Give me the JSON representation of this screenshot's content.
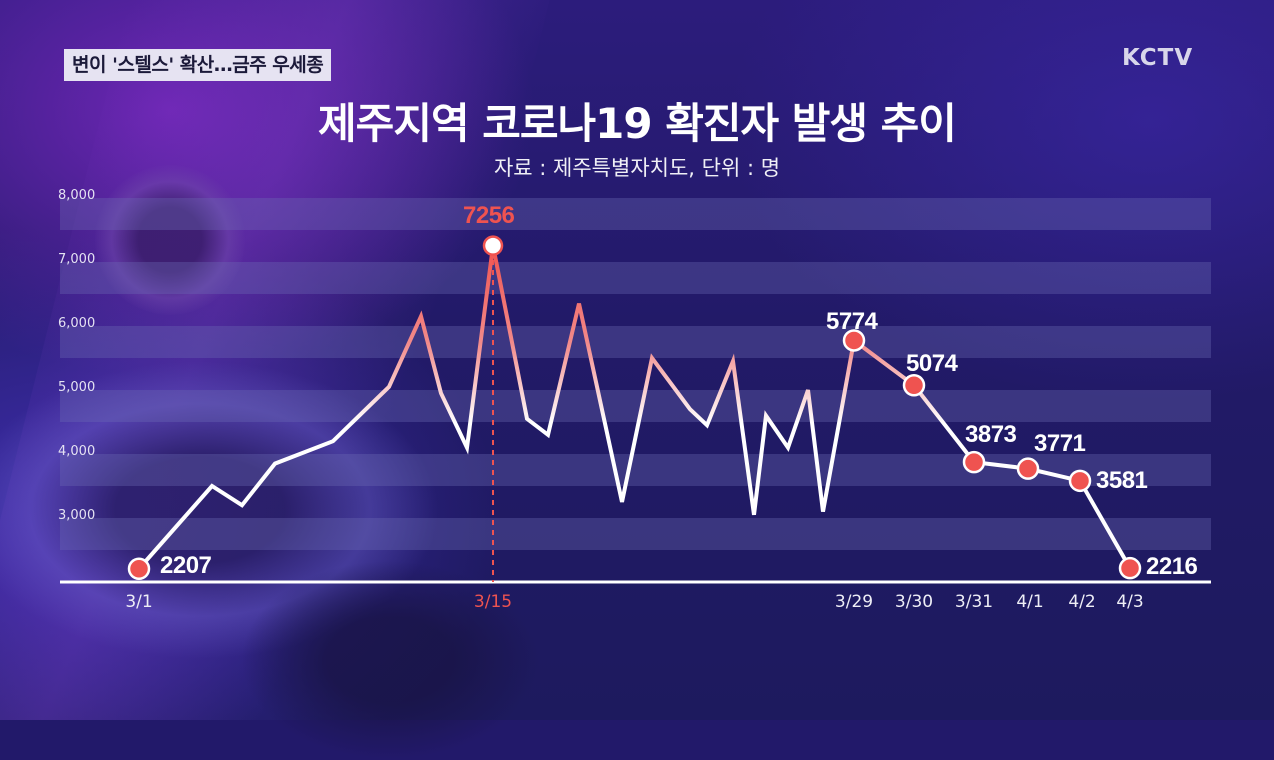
{
  "header": {
    "news_tag": "변이 '스텔스' 확산…금주 우세종",
    "channel_logo": "KCTV"
  },
  "chart_data": {
    "type": "line",
    "title": "제주지역 코로나19 확진자 발생 추이",
    "subtitle": "자료 : 제주특별자치도, 단위 : 명",
    "xlabel": "",
    "ylabel": "",
    "ylim": [
      2000,
      8000
    ],
    "y_ticks": [
      "8,000",
      "7,000",
      "6,000",
      "5,000",
      "4,000",
      "3,000"
    ],
    "x_tick_labels": [
      "3/1",
      "3/15",
      "3/29",
      "3/30",
      "3/31",
      "4/1",
      "4/2",
      "4/3"
    ],
    "grid": "alternating horizontal bands",
    "labeled_points": [
      {
        "date": "3/1",
        "value": 2207
      },
      {
        "date": "3/15",
        "value": 7256,
        "highlight": true
      },
      {
        "date": "3/29",
        "value": 5774
      },
      {
        "date": "3/30",
        "value": 5074
      },
      {
        "date": "3/31",
        "value": 3873
      },
      {
        "date": "4/1",
        "value": 3771
      },
      {
        "date": "4/2",
        "value": 3581
      },
      {
        "date": "4/3",
        "value": 2216
      }
    ],
    "line_vertices_note": "Unlabeled vertices are estimated from pixel positions (~±50) and have no date; the drawn vertices do not correspond one-to-one with calendar days.",
    "line_vertices": [
      {
        "x": 139,
        "value": 2207,
        "labeled": true
      },
      {
        "x": 212,
        "value": 3500,
        "labeled": false
      },
      {
        "x": 242,
        "value": 3200,
        "labeled": false
      },
      {
        "x": 275,
        "value": 3850,
        "labeled": false
      },
      {
        "x": 333,
        "value": 4200,
        "labeled": false
      },
      {
        "x": 389,
        "value": 5050,
        "labeled": false
      },
      {
        "x": 421,
        "value": 6150,
        "labeled": false
      },
      {
        "x": 441,
        "value": 4950,
        "labeled": false
      },
      {
        "x": 467,
        "value": 4100,
        "labeled": false
      },
      {
        "x": 493,
        "value": 7256,
        "labeled": true
      },
      {
        "x": 527,
        "value": 4550,
        "labeled": false
      },
      {
        "x": 548,
        "value": 4300,
        "labeled": false
      },
      {
        "x": 579,
        "value": 6350,
        "labeled": false
      },
      {
        "x": 622,
        "value": 3250,
        "labeled": false
      },
      {
        "x": 652,
        "value": 5500,
        "labeled": false
      },
      {
        "x": 690,
        "value": 4700,
        "labeled": false
      },
      {
        "x": 707,
        "value": 4450,
        "labeled": false
      },
      {
        "x": 733,
        "value": 5450,
        "labeled": false
      },
      {
        "x": 754,
        "value": 3050,
        "labeled": false
      },
      {
        "x": 766,
        "value": 4600,
        "labeled": false
      },
      {
        "x": 788,
        "value": 4100,
        "labeled": false
      },
      {
        "x": 808,
        "value": 5000,
        "labeled": false
      },
      {
        "x": 823,
        "value": 3100,
        "labeled": false
      },
      {
        "x": 854,
        "value": 5774,
        "labeled": true
      },
      {
        "x": 914,
        "value": 5074,
        "labeled": true
      },
      {
        "x": 974,
        "value": 3873,
        "labeled": true
      },
      {
        "x": 1028,
        "value": 3771,
        "labeled": true
      },
      {
        "x": 1080,
        "value": 3581,
        "labeled": true
      },
      {
        "x": 1130,
        "value": 2216,
        "labeled": true
      }
    ],
    "colors": {
      "line": "#ffffff",
      "highlight": "#ef5350",
      "marker": "#ef5350",
      "band": "rgba(110,110,180,0.35)"
    }
  },
  "labels": {
    "y": [
      "8,000",
      "7,000",
      "6,000",
      "5,000",
      "4,000",
      "3,000"
    ],
    "x": {
      "d0301": "3/1",
      "d0315": "3/15",
      "d0329": "3/29",
      "d0330": "3/30",
      "d0331": "3/31",
      "d0401": "4/1",
      "d0402": "4/2",
      "d0403": "4/3"
    },
    "values": {
      "v0301": "2207",
      "v0315": "7256",
      "v0329": "5774",
      "v0330": "5074",
      "v0331": "3873",
      "v0401": "3771",
      "v0402": "3581",
      "v0403": "2216"
    }
  }
}
